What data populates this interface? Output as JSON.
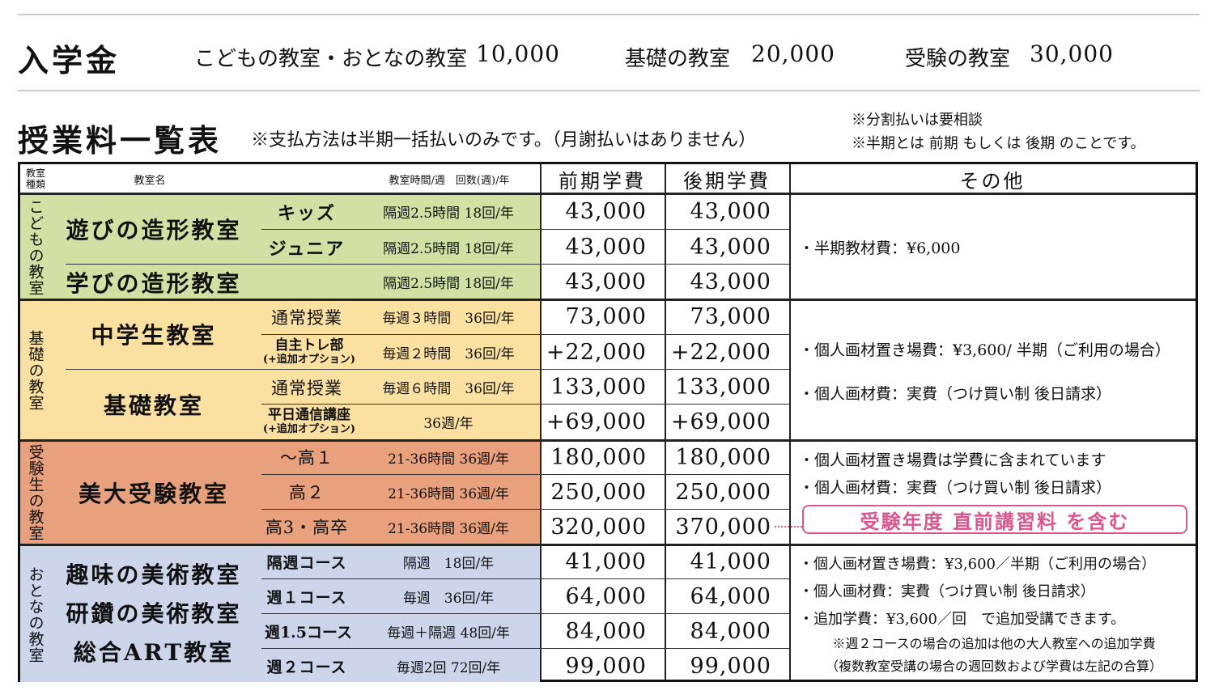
{
  "admission": {
    "title": "入学金",
    "items": [
      {
        "label": "こどもの教室・おとなの教室",
        "amount": "10,000"
      },
      {
        "label": "基礎の教室",
        "amount": "20,000"
      },
      {
        "label": "受験の教室",
        "amount": "30,000"
      }
    ]
  },
  "tuition": {
    "title": "授業料一覧表",
    "payment_note": "※支払方法は半期一括払いのみです。（月謝払いはありません）",
    "side_notes": [
      "※分割払いは要相談",
      "※半期とは 前期 もしくは 後期 のことです。"
    ]
  },
  "header": {
    "category": "教室種類",
    "class_name": "教室名",
    "time_week": "教室時間/週　回数(週)/年",
    "first_term": "前期学費",
    "second_term": "後期学費",
    "other": "その他"
  },
  "groups": [
    {
      "category": "こどもの教室",
      "color": "#d3e0a4",
      "classes": [
        {
          "name": "遊びの造形教室",
          "rows": [
            {
              "sub": "キッズ",
              "time": "隔週2.5時間 18回/年",
              "first": "43,000",
              "second": "43,000"
            },
            {
              "sub": "ジュニア",
              "time": "隔週2.5時間 18回/年",
              "first": "43,000",
              "second": "43,000"
            }
          ]
        },
        {
          "name": "学びの造形教室",
          "rows": [
            {
              "sub": "",
              "time": "隔週2.5時間 18回/年",
              "first": "43,000",
              "second": "43,000"
            }
          ]
        }
      ],
      "other": [
        "・半期教材費：¥6,000"
      ]
    },
    {
      "category": "基礎の教室",
      "color": "#fae1a2",
      "classes": [
        {
          "name": "中学生教室",
          "rows": [
            {
              "sub": "通常授業",
              "time": "毎週３時間　36回/年",
              "first": "73,000",
              "second": "73,000"
            },
            {
              "sub": "自主トレ部",
              "sub_option": "(+追加オプション)",
              "time": "毎週２時間　36回/年",
              "first": "+22,000",
              "second": "+22,000"
            }
          ]
        },
        {
          "name": "基礎教室",
          "rows": [
            {
              "sub": "通常授業",
              "time": "毎週６時間　36回/年",
              "first": "133,000",
              "second": "133,000"
            },
            {
              "sub": "平日通信講座",
              "sub_option": "(+追加オプション)",
              "time": "36週/年",
              "first": "+69,000",
              "second": "+69,000"
            }
          ]
        }
      ],
      "other": [
        "・個人画材置き場費：¥3,600/ 半期（ご利用の場合）",
        "・個人画材費：実費（つけ買い制 後日請求）"
      ]
    },
    {
      "category": "受験生の教室",
      "color": "#e9a07c",
      "classes": [
        {
          "name": "美大受験教室",
          "rows": [
            {
              "sub": "～高１",
              "time": "21-36時間 36週/年",
              "first": "180,000",
              "second": "180,000"
            },
            {
              "sub": "高２",
              "time": "21-36時間 36週/年",
              "first": "250,000",
              "second": "250,000"
            },
            {
              "sub": "高3・高卒",
              "time": "21-36時間 36週/年",
              "first": "320,000",
              "second": "370,000"
            }
          ]
        }
      ],
      "other": [
        "・個人画材置き場費は学費に含まれています",
        "・個人画材費：実費（つけ買い制 後日請求）"
      ],
      "badge": "受験年度 直前講習料 を含む",
      "badge_color": "#d9578e"
    },
    {
      "category": "おとなの教室",
      "color": "#cdd5ea",
      "class_names": [
        "趣味の美術教室",
        "研鑽の美術教室",
        "総合ART教室"
      ],
      "rows": [
        {
          "sub": "隔週コース",
          "time": "隔週　18回/年",
          "first": "41,000",
          "second": "41,000"
        },
        {
          "sub": "週１コース",
          "time": "毎週　36回/年",
          "first": "64,000",
          "second": "64,000"
        },
        {
          "sub": "週1.5コース",
          "time": "毎週＋隔週 48回/年",
          "first": "84,000",
          "second": "84,000"
        },
        {
          "sub": "週２コース",
          "time": "毎週2回 72回/年",
          "first": "99,000",
          "second": "99,000"
        }
      ],
      "other": [
        "・個人画材置き場費：¥3,600／半期（ご利用の場合）",
        "・個人画材費：実費（つけ買い制 後日請求）",
        "・追加学費：¥3,600／回　で追加受講できます。",
        "※週２コースの場合の追加は他の大人教室への追加学費",
        "（複数教室受講の場合の週回数および学費は左記の合算）"
      ]
    }
  ]
}
